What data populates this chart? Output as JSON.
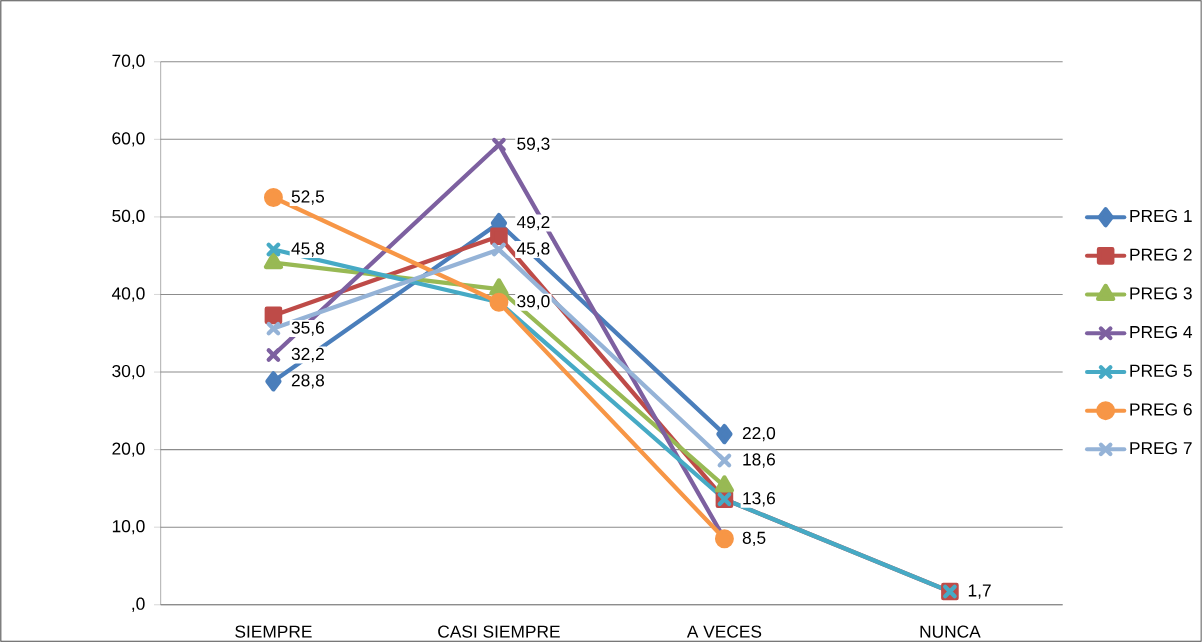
{
  "chart_data": {
    "type": "line",
    "categories": [
      "SIEMPRE",
      "CASI SIEMPRE",
      "A VECES",
      "NUNCA"
    ],
    "ylim": [
      0,
      70
    ],
    "yticks": [
      {
        "value": 0,
        "label": ",0"
      },
      {
        "value": 10,
        "label": "10,0"
      },
      {
        "value": 20,
        "label": "20,0"
      },
      {
        "value": 30,
        "label": "30,0"
      },
      {
        "value": 40,
        "label": "40,0"
      },
      {
        "value": 50,
        "label": "50,0"
      },
      {
        "value": 60,
        "label": "60,0"
      },
      {
        "value": 70,
        "label": "70,0"
      }
    ],
    "grid": "y",
    "legend": "right",
    "series": [
      {
        "name": "PREG 1",
        "color": "#4a7ebb",
        "marker": "diamond",
        "values": [
          28.8,
          49.2,
          22.0,
          null
        ],
        "value_labels": [
          "28,8",
          "49,2",
          "22,0",
          null
        ]
      },
      {
        "name": "PREG 2",
        "color": "#be4b48",
        "marker": "square",
        "values": [
          37.3,
          47.5,
          13.6,
          1.7
        ],
        "value_labels": [
          null,
          null,
          null,
          null
        ]
      },
      {
        "name": "PREG 3",
        "color": "#98b954",
        "marker": "triangle",
        "values": [
          44.1,
          40.7,
          15.3,
          null
        ],
        "value_labels": [
          null,
          null,
          null,
          null
        ]
      },
      {
        "name": "PREG 4",
        "color": "#7d60a0",
        "marker": "cross",
        "values": [
          32.2,
          59.3,
          8.5,
          null
        ],
        "value_labels": [
          "32,2",
          "59,3",
          null,
          null
        ]
      },
      {
        "name": "PREG 5",
        "color": "#46aac5",
        "marker": "cross",
        "values": [
          45.8,
          39.0,
          13.6,
          1.7
        ],
        "value_labels": [
          "45,8",
          null,
          "13,6",
          "1,7"
        ]
      },
      {
        "name": "PREG 6",
        "color": "#f79646",
        "marker": "circle",
        "values": [
          52.5,
          39.0,
          8.5,
          null
        ],
        "value_labels": [
          "52,5",
          "39,0",
          "8,5",
          null
        ]
      },
      {
        "name": "PREG 7",
        "color": "#95b3d7",
        "marker": "cross",
        "values": [
          35.6,
          45.8,
          18.6,
          null
        ],
        "value_labels": [
          "35,6",
          "45,8",
          "18,6",
          null
        ]
      }
    ]
  }
}
